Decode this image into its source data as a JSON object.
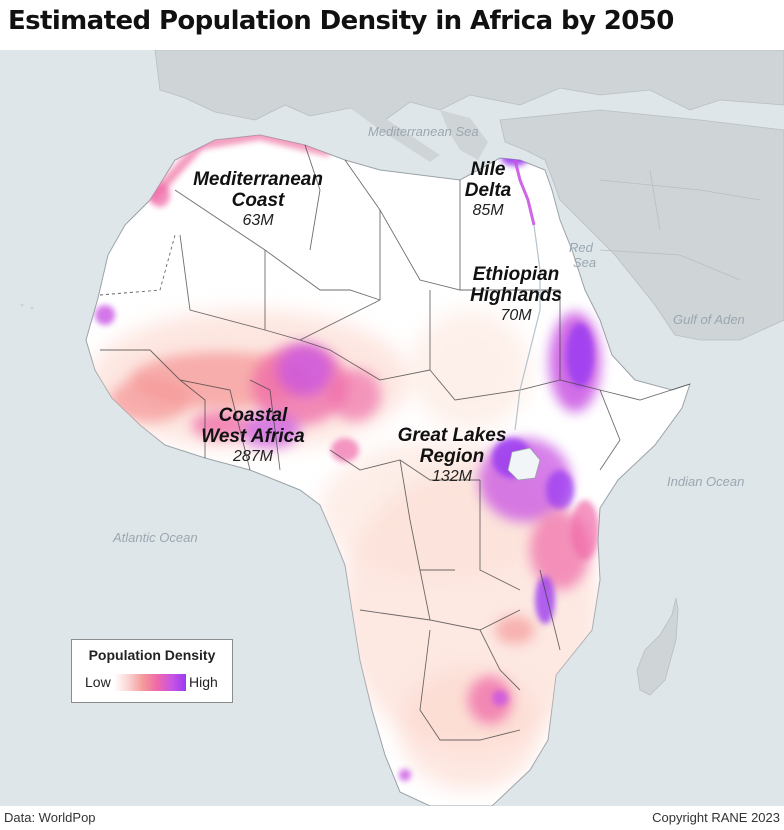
{
  "title": "Estimated Population Density in Africa by 2050",
  "sea_labels": {
    "mediterranean": "Mediterranean Sea",
    "red_sea_line1": "Red",
    "red_sea_line2": "Sea",
    "gulf_of_aden": "Gulf of Aden",
    "indian_ocean": "Indian Ocean",
    "atlantic_ocean": "Atlantic Ocean"
  },
  "regions": {
    "mediterranean_coast": {
      "name_line1": "Mediterranean",
      "name_line2": "Coast",
      "population": "63M"
    },
    "nile_delta": {
      "name_line1": "Nile",
      "name_line2": "Delta",
      "population": "85M"
    },
    "ethiopian_highlands": {
      "name_line1": "Ethiopian",
      "name_line2": "Highlands",
      "population": "70M"
    },
    "coastal_west_africa": {
      "name_line1": "Coastal",
      "name_line2": "West Africa",
      "population": "287M"
    },
    "great_lakes": {
      "name_line1": "Great Lakes",
      "name_line2": "Region",
      "population": "132M"
    }
  },
  "legend": {
    "title": "Population Density",
    "low": "Low",
    "high": "High",
    "gradient_colors": [
      "#ffffff",
      "#fbd3d3",
      "#f59a9a",
      "#ef6aa8",
      "#c955e3",
      "#9b3cf0"
    ]
  },
  "colors": {
    "ocean": "#dfe6ea",
    "land_other": "#cfd4d7",
    "africa_land": "#ffffff",
    "density_low": "#fbd0c4",
    "density_mid": "#f07aa8",
    "density_high": "#9b3cf0"
  },
  "footer": {
    "source": "Data: WorldPop",
    "copyright": "Copyright RANE 2023"
  }
}
